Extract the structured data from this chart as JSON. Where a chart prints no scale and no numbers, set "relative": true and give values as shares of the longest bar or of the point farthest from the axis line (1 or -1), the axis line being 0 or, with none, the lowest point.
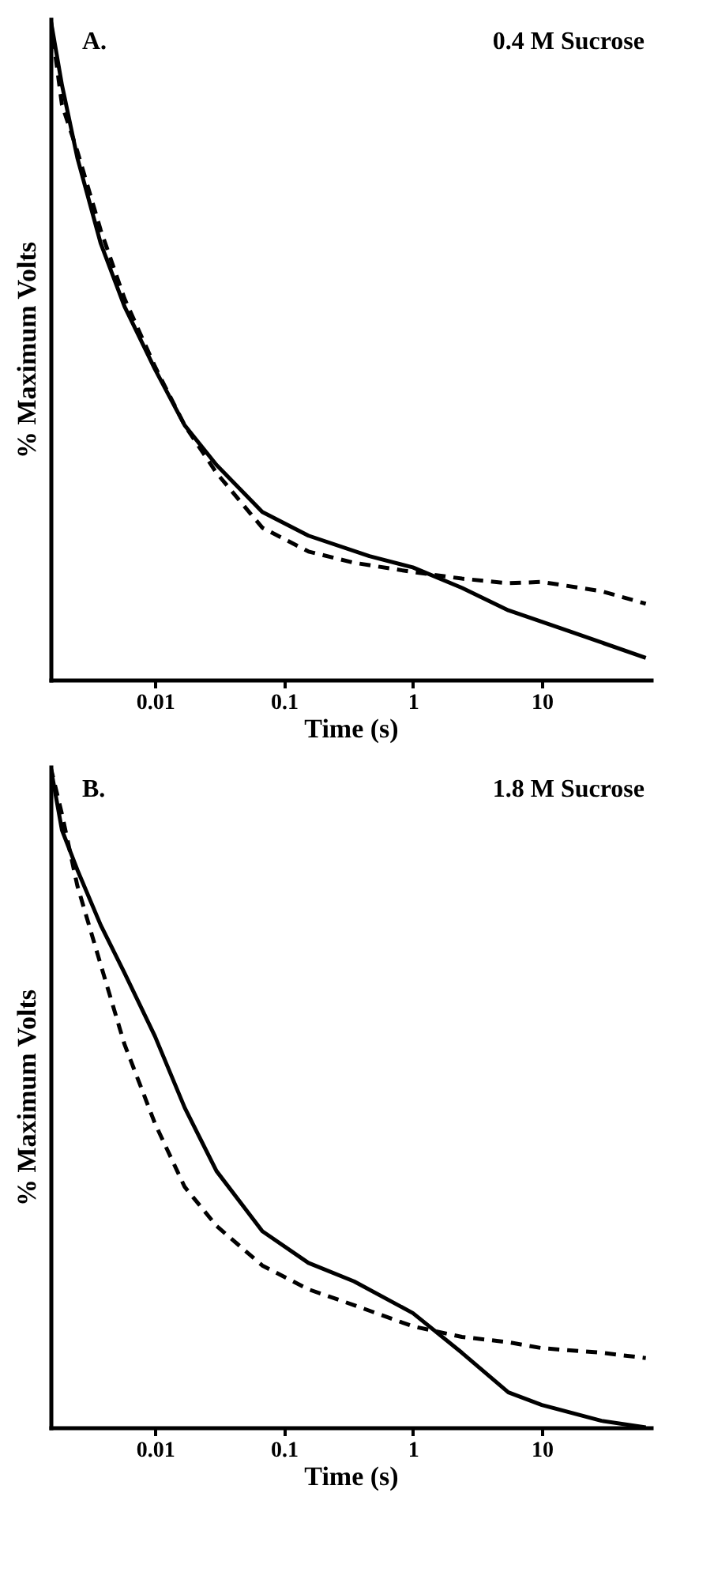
{
  "chart_data": [
    {
      "type": "line",
      "relative": true,
      "log": "x",
      "xlabel": "Time (s)",
      "ylabel": "% Maximum Volts",
      "annotations": [
        "A.",
        "0.4 M Sucrose"
      ],
      "xlim": [
        0.00155,
        70
      ],
      "xticks": [
        0.01,
        0.1,
        1,
        10
      ],
      "series": [
        {
          "color": "#000000",
          "line_style": "solid",
          "x": [
            0.00155,
            0.0019,
            0.0025,
            0.0038,
            0.0058,
            0.01,
            0.017,
            0.03,
            0.068,
            0.155,
            0.46,
            1,
            2.4,
            5.5,
            16,
            64
          ],
          "values": [
            1,
            0.9,
            0.79,
            0.66,
            0.565,
            0.47,
            0.385,
            0.325,
            0.254,
            0.218,
            0.187,
            0.17,
            0.139,
            0.105,
            0.074,
            0.033
          ]
        },
        {
          "color": "#000000",
          "line_style": "dashed",
          "x": [
            0.00155,
            0.0019,
            0.0025,
            0.0038,
            0.0058,
            0.01,
            0.017,
            0.03,
            0.068,
            0.155,
            0.35,
            1,
            2.4,
            5.5,
            10,
            29,
            64
          ],
          "values": [
            1,
            0.87,
            0.8,
            0.68,
            0.577,
            0.474,
            0.385,
            0.313,
            0.23,
            0.194,
            0.177,
            0.163,
            0.153,
            0.146,
            0.148,
            0.134,
            0.115
          ]
        }
      ]
    },
    {
      "type": "line",
      "relative": true,
      "log": "x",
      "xlabel": "Time (s)",
      "ylabel": "% Maximum Volts",
      "annotations": [
        "B.",
        "1.8 M Sucrose"
      ],
      "xlim": [
        0.00155,
        70
      ],
      "xticks": [
        0.01,
        0.1,
        1,
        10
      ],
      "series": [
        {
          "color": "#000000",
          "line_style": "solid",
          "x": [
            0.00155,
            0.0019,
            0.0025,
            0.0038,
            0.0058,
            0.01,
            0.017,
            0.03,
            0.068,
            0.155,
            0.35,
            1,
            2.4,
            5.5,
            10,
            29,
            64
          ],
          "values": [
            1,
            0.904,
            0.844,
            0.76,
            0.688,
            0.592,
            0.484,
            0.388,
            0.297,
            0.249,
            0.221,
            0.173,
            0.113,
            0.053,
            0.034,
            0.01,
            0
          ]
        },
        {
          "color": "#000000",
          "line_style": "dashed",
          "x": [
            0.00155,
            0.0019,
            0.0025,
            0.0038,
            0.0058,
            0.01,
            0.017,
            0.03,
            0.068,
            0.155,
            0.35,
            1,
            2.4,
            5.5,
            10,
            29,
            64
          ],
          "values": [
            1,
            0.928,
            0.82,
            0.7,
            0.58,
            0.46,
            0.364,
            0.305,
            0.245,
            0.209,
            0.185,
            0.153,
            0.137,
            0.129,
            0.12,
            0.113,
            0.105
          ]
        }
      ]
    }
  ]
}
